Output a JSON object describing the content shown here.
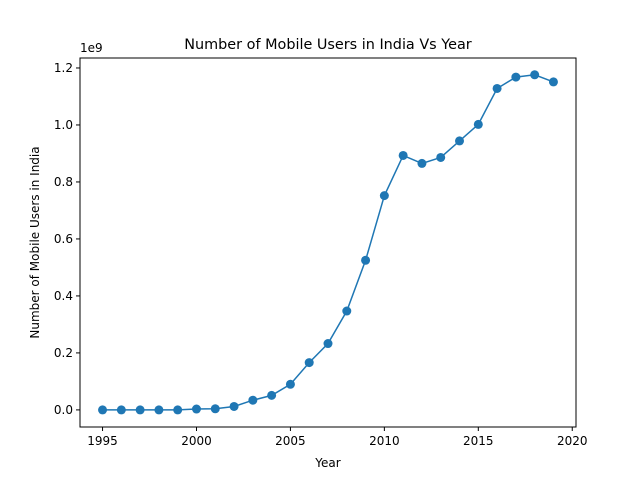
{
  "chart_data": {
    "type": "line",
    "title": "Number of Mobile Users in India Vs Year",
    "xlabel": "Year",
    "ylabel": "Number of Mobile Users in India",
    "y_offset_label": "1e9",
    "xlim": [
      1993.8,
      2020.2
    ],
    "ylim": [
      -0.06,
      1.235
    ],
    "y_scale_multiplier": 1000000000,
    "x_ticks": [
      1995,
      2000,
      2005,
      2010,
      2015,
      2020
    ],
    "x_tick_labels": [
      "1995",
      "2000",
      "2005",
      "2010",
      "2015",
      "2020"
    ],
    "y_ticks": [
      0.0,
      0.2,
      0.4,
      0.6,
      0.8,
      1.0,
      1.2
    ],
    "y_tick_labels": [
      "0.0",
      "0.2",
      "0.4",
      "0.6",
      "0.8",
      "1.0",
      "1.2"
    ],
    "grid": false,
    "legend": null,
    "color": "#1f77b4",
    "marker": "circle",
    "x": [
      1995,
      1996,
      1997,
      1998,
      1999,
      2000,
      2001,
      2002,
      2003,
      2004,
      2005,
      2006,
      2007,
      2008,
      2009,
      2010,
      2011,
      2012,
      2013,
      2014,
      2015,
      2016,
      2017,
      2018,
      2019
    ],
    "y": [
      0.0,
      0.0,
      0.0,
      0.0,
      0.0,
      0.003,
      0.004,
      0.012,
      0.034,
      0.051,
      0.09,
      0.166,
      0.233,
      0.347,
      0.525,
      0.752,
      0.893,
      0.865,
      0.886,
      0.944,
      1.002,
      1.128,
      1.168,
      1.176,
      1.151
    ]
  }
}
